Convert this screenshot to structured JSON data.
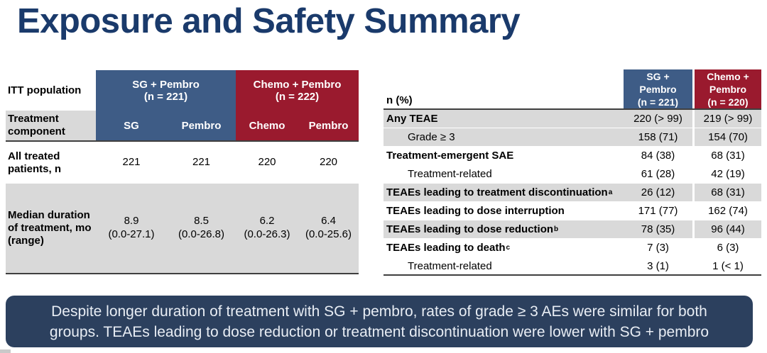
{
  "title": "Exposure and Safety Summary",
  "colors": {
    "title_navy": "#1a3a6b",
    "header_blue": "#3e5c86",
    "header_red": "#9a1a2e",
    "row_gray": "#d9d9d9",
    "summary_navy": "#2c405e"
  },
  "left_table": {
    "corner_label": "ITT population",
    "component_label": "Treatment component",
    "groups": [
      {
        "label": "SG + Pembro\n(n = 221)"
      },
      {
        "label": "Chemo + Pembro\n(n = 222)"
      }
    ],
    "sub_headers": [
      "SG",
      "Pembro",
      "Chemo",
      "Pembro"
    ],
    "rows": [
      {
        "label": "All treated patients, n",
        "values": [
          "221",
          "221",
          "220",
          "220"
        ]
      },
      {
        "label": "Median duration of treatment, mo (range)",
        "values": [
          "8.9\n(0.0-27.1)",
          "8.5\n(0.0-26.8)",
          "6.2\n(0.0-26.3)",
          "6.4\n(0.0-25.6)"
        ]
      }
    ]
  },
  "right_table": {
    "corner_label": "n (%)",
    "col_headers": [
      {
        "label": "SG +\nPembro\n(n = 221)"
      },
      {
        "label": "Chemo +\nPembro\n(n = 220)"
      }
    ],
    "rows": [
      {
        "label": "Any TEAE",
        "sup": "",
        "values": [
          "220 (> 99)",
          "219 (> 99)"
        ]
      },
      {
        "label": "Grade ≥ 3",
        "sup": "",
        "values": [
          "158 (71)",
          "154 (70)"
        ]
      },
      {
        "label": "Treatment-emergent SAE",
        "sup": "",
        "values": [
          "84 (38)",
          "68 (31)"
        ]
      },
      {
        "label": "Treatment-related",
        "sup": "",
        "values": [
          "61 (28)",
          "42 (19)"
        ]
      },
      {
        "label": "TEAEs leading to treatment discontinuation",
        "sup": "a",
        "values": [
          "26 (12)",
          "68 (31)"
        ]
      },
      {
        "label": "TEAEs leading to dose interruption",
        "sup": "",
        "values": [
          "171 (77)",
          "162 (74)"
        ]
      },
      {
        "label": "TEAEs leading to dose reduction",
        "sup": "b",
        "values": [
          "78 (35)",
          "96 (44)"
        ]
      },
      {
        "label": "TEAEs leading to death",
        "sup": "c",
        "values": [
          "7 (3)",
          "6 (3)"
        ]
      },
      {
        "label": "Treatment-related",
        "sup": "",
        "values": [
          "3 (1)",
          "1 (< 1)"
        ]
      }
    ]
  },
  "summary": {
    "text": "Despite longer duration of treatment with SG + pembro, rates of grade ≥ 3 AEs were similar for both groups. TEAEs leading to dose reduction or treatment discontinuation were lower with SG + pembro"
  }
}
